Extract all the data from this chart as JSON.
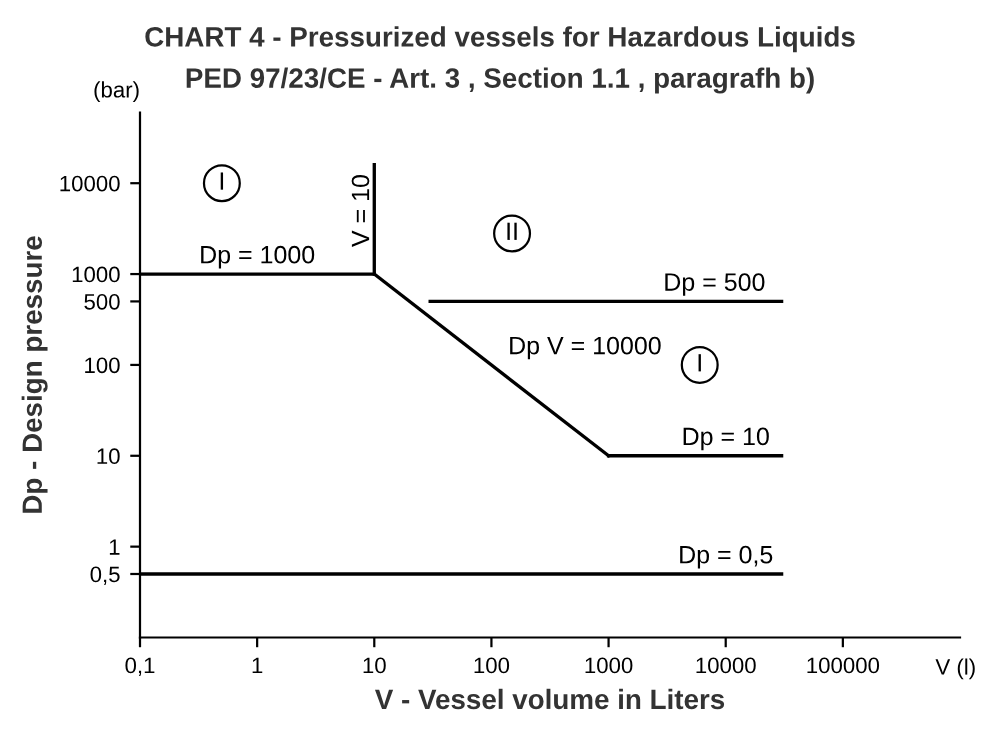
{
  "chart_data": {
    "type": "line",
    "title": "CHART 4 - Pressurized vessels for Hazardous Liquids",
    "subtitle": "PED 97/23/CE - Art. 3 , Section 1.1 , paragrafh b)",
    "xlabel": "V - Vessel volume in Liters",
    "ylabel": "Dp - Design pressure",
    "log": "xy",
    "xlim": [
      0.1,
      1000000
    ],
    "ylim": [
      0.1,
      60000
    ],
    "xticks": [
      {
        "value": 0.1,
        "label": "0,1"
      },
      1,
      10,
      100,
      1000,
      10000,
      100000
    ],
    "yticks": [
      {
        "value": 0.5,
        "label": "0,5"
      },
      1,
      10,
      100,
      500,
      1000,
      10000
    ],
    "grid": false,
    "marker": "none",
    "line_style": "solid",
    "series": [
      {
        "color": "#000000",
        "x": [
          0.1,
          10
        ],
        "values": [
          1000,
          1000
        ]
      },
      {
        "color": "#000000",
        "x": [
          10,
          10
        ],
        "values": [
          1000,
          16000
        ]
      },
      {
        "color": "#000000",
        "x": [
          10,
          1000
        ],
        "values": [
          1000,
          10
        ]
      },
      {
        "color": "#000000",
        "x": [
          30,
          30000
        ],
        "values": [
          500,
          500
        ]
      },
      {
        "color": "#000000",
        "x": [
          1000,
          30000
        ],
        "values": [
          10,
          10
        ]
      },
      {
        "color": "#000000",
        "x": [
          0.1,
          30000
        ],
        "values": [
          0.5,
          0.5
        ]
      }
    ],
    "annotations": [
      "(bar)",
      "V (l)",
      {
        "text": "Dp = 1000",
        "x": 1,
        "y": 1000
      },
      {
        "text": "V = 10",
        "x": 10,
        "y": 5000
      },
      {
        "text": "I",
        "x": 0.5,
        "y": 10000
      },
      {
        "text": "II",
        "x": 150,
        "y": 2800
      },
      {
        "text": "Dp = 500",
        "x": 8000,
        "y": 500
      },
      {
        "text": "Dp V = 10000",
        "x": 100,
        "y": 100
      },
      {
        "text": "I",
        "x": 6000,
        "y": 100
      },
      {
        "text": "Dp = 10",
        "x": 10000,
        "y": 10
      },
      {
        "text": "Dp = 0,5",
        "x": 10000,
        "y": 0.5
      }
    ]
  }
}
